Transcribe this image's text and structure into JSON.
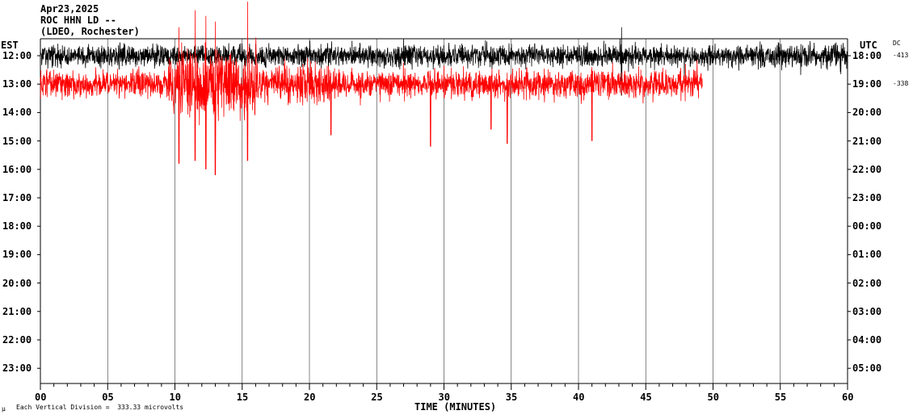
{
  "header": {
    "date": "Apr23,2025",
    "station": "ROC HHN LD --",
    "network": "(LDEO, Rochester)"
  },
  "left_zone": "EST",
  "right_zone": "UTC",
  "dc_label": "DC",
  "footer": {
    "mark": "μ",
    "scale_text": "Each Vertical Division =  333.33 microvolts"
  },
  "colors": {
    "trace_a": "#000000",
    "trace_b": "#ff0000",
    "grid": "#000000",
    "background": "#ffffff"
  },
  "chart_data": {
    "type": "line",
    "title": "",
    "xlabel": "TIME (MINUTES)",
    "ylabel": "",
    "xlim": [
      0,
      60
    ],
    "x_ticks": [
      "00",
      "05",
      "10",
      "15",
      "20",
      "25",
      "30",
      "35",
      "40",
      "45",
      "50",
      "55",
      "60"
    ],
    "row_labels_est": [
      "12:00",
      "13:00",
      "14:00",
      "15:00",
      "16:00",
      "17:00",
      "18:00",
      "19:00",
      "20:00",
      "21:00",
      "22:00",
      "23:00"
    ],
    "row_labels_utc": [
      "18:00",
      "19:00",
      "20:00",
      "21:00",
      "22:00",
      "23:00",
      "00:00",
      "01:00",
      "02:00",
      "03:00",
      "04:00",
      "05:00"
    ],
    "dc_offsets": [
      "-413",
      "-338"
    ],
    "series": [
      {
        "row": "12:00",
        "color": "#000000",
        "duration_min": 60,
        "features": [
          {
            "minute": 43.2,
            "spike_up": 1.0,
            "spike_down": 1.4
          },
          {
            "minute": 27.0,
            "spike_up": 0.6,
            "spike_down": 0.2
          },
          {
            "minute": 53.5,
            "spike_up": 0.5,
            "spike_down": 0.2
          }
        ]
      },
      {
        "row": "13:00",
        "color": "#ff0000",
        "duration_min": 49.2,
        "features": [
          {
            "minute": 11.5,
            "spike_up": 2.6,
            "spike_down": 2.7
          },
          {
            "minute": 12.3,
            "spike_up": 2.4,
            "spike_down": 3.0
          },
          {
            "minute": 13.0,
            "spike_up": 2.2,
            "spike_down": 3.2
          },
          {
            "minute": 15.4,
            "spike_up": 2.9,
            "spike_down": 2.7
          },
          {
            "minute": 10.3,
            "spike_up": 2.0,
            "spike_down": 2.8
          },
          {
            "minute": 21.6,
            "spike_up": 0.4,
            "spike_down": 1.8
          },
          {
            "minute": 29.0,
            "spike_up": 0.3,
            "spike_down": 2.2
          },
          {
            "minute": 34.7,
            "spike_up": 0.4,
            "spike_down": 2.1
          },
          {
            "minute": 41.0,
            "spike_up": 0.6,
            "spike_down": 2.0
          },
          {
            "minute": 33.5,
            "spike_up": 0.3,
            "spike_down": 1.6
          }
        ]
      }
    ]
  }
}
